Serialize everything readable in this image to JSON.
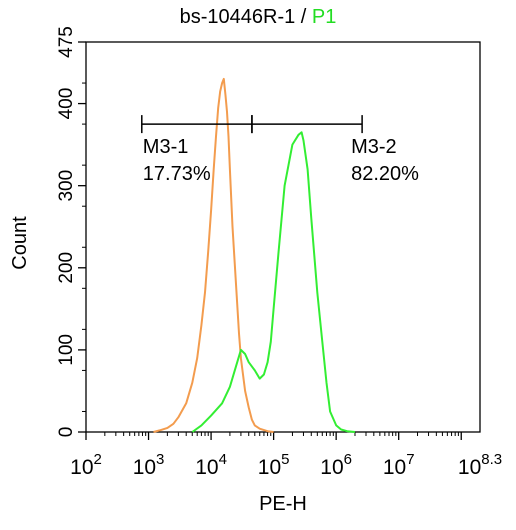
{
  "chart_data": {
    "type": "histogram",
    "title": "bs-10446R-1",
    "title_separator": " / ",
    "title_highlight": "P1",
    "xlabel": "PE-H",
    "ylabel": "Count",
    "x_scale": "log10",
    "xlim": [
      100,
      199526231
    ],
    "ylim": [
      0,
      475
    ],
    "y_ticks": [
      0,
      100,
      200,
      300,
      400,
      475
    ],
    "x_ticks": [
      {
        "value": 100,
        "base": "10",
        "exp": "2"
      },
      {
        "value": 1000,
        "base": "10",
        "exp": "3"
      },
      {
        "value": 10000,
        "base": "10",
        "exp": "4"
      },
      {
        "value": 100000,
        "base": "10",
        "exp": "5"
      },
      {
        "value": 1000000,
        "base": "10",
        "exp": "6"
      },
      {
        "value": 10000000,
        "base": "10",
        "exp": "7"
      },
      {
        "value": 199526231,
        "base": "10",
        "exp": "8.3"
      }
    ],
    "series": [
      {
        "color": "#f39c4e",
        "x": [
          1200,
          1500,
          2000,
          2500,
          3000,
          4000,
          5000,
          6000,
          7000,
          8000,
          9000,
          10000,
          11000,
          12000,
          13000,
          14000,
          15000,
          16000,
          17000,
          18000,
          19000,
          20000,
          22000,
          25000,
          28000,
          30000,
          35000,
          40000,
          45000,
          50000,
          60000,
          80000,
          100000
        ],
        "y": [
          0,
          2,
          5,
          10,
          18,
          35,
          60,
          90,
          130,
          170,
          220,
          270,
          320,
          360,
          395,
          415,
          425,
          430,
          410,
          390,
          360,
          320,
          250,
          180,
          120,
          90,
          50,
          30,
          15,
          8,
          4,
          1,
          0
        ]
      },
      {
        "color": "#33ee33",
        "x": [
          5000,
          7000,
          10000,
          15000,
          20000,
          25000,
          30000,
          35000,
          40000,
          50000,
          60000,
          70000,
          80000,
          90000,
          100000,
          120000,
          150000,
          200000,
          250000,
          280000,
          300000,
          350000,
          400000,
          500000,
          600000,
          700000,
          800000,
          1000000,
          1200000,
          1500000,
          2000000
        ],
        "y": [
          0,
          8,
          20,
          35,
          55,
          80,
          100,
          95,
          85,
          75,
          65,
          70,
          85,
          110,
          150,
          220,
          300,
          350,
          362,
          365,
          355,
          320,
          260,
          170,
          110,
          60,
          25,
          8,
          3,
          1,
          0
        ]
      }
    ],
    "gates": [
      {
        "name": "M3-1",
        "percent": "17.73%",
        "x_start": 780,
        "x_end": 45000,
        "y": 375
      },
      {
        "name": "M3-2",
        "percent": "82.20%",
        "x_start": 45000,
        "x_end": 2600000,
        "y": 375
      }
    ]
  },
  "colors": {
    "axis": "#000000",
    "highlight": "#22dd22"
  }
}
